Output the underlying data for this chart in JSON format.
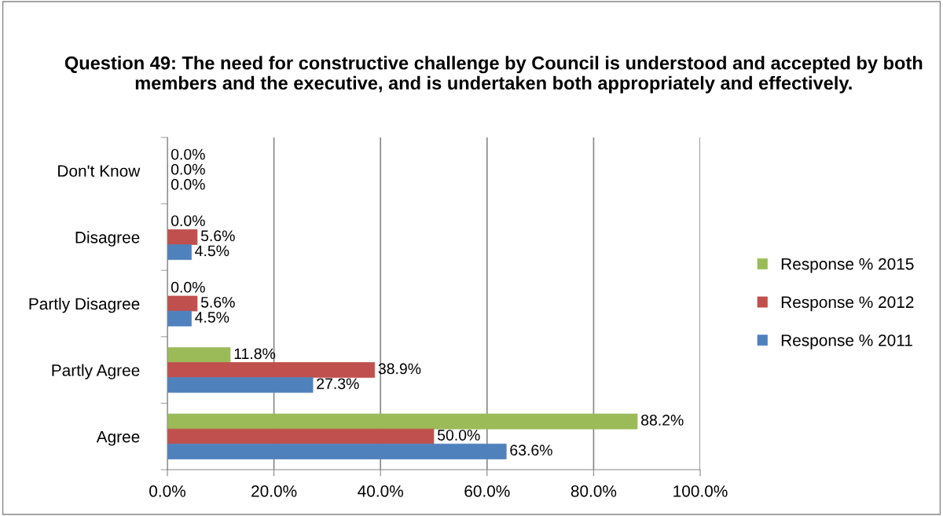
{
  "chart_data": {
    "type": "bar",
    "orientation": "horizontal",
    "title": "Question 49: The need for constructive challenge by Council is understood and accepted by both members and the executive, and is undertaken both appropriately and effectively.",
    "categories": [
      "Don't Know",
      "Disagree",
      "Partly Disagree",
      "Partly Agree",
      "Agree"
    ],
    "series": [
      {
        "name": "Response % 2015",
        "color": "#9bbb59",
        "values": [
          0,
          0,
          0,
          11.8,
          88.2
        ],
        "value_labels": [
          "0.0%",
          "0.0%",
          "0.0%",
          "11.8%",
          "88.2%"
        ]
      },
      {
        "name": "Response % 2012",
        "color": "#c0504d",
        "values": [
          0,
          5.6,
          5.6,
          38.9,
          50.0
        ],
        "value_labels": [
          "0.0%",
          "5.6%",
          "5.6%",
          "38.9%",
          "50.0%"
        ]
      },
      {
        "name": "Response % 2011",
        "color": "#4f81bd",
        "values": [
          0,
          4.5,
          4.5,
          27.3,
          63.6
        ],
        "value_labels": [
          "0.0%",
          "4.5%",
          "4.5%",
          "27.3%",
          "63.6%"
        ]
      }
    ],
    "xlim": [
      0,
      100
    ],
    "xticks": [
      {
        "value": 0,
        "label": "0.0%"
      },
      {
        "value": 20,
        "label": "20.0%"
      },
      {
        "value": 40,
        "label": "40.0%"
      },
      {
        "value": 60,
        "label": "60.0%"
      },
      {
        "value": 80,
        "label": "80.0%"
      },
      {
        "value": 100,
        "label": "100.0%"
      }
    ],
    "grid": "x",
    "legend": "right"
  }
}
